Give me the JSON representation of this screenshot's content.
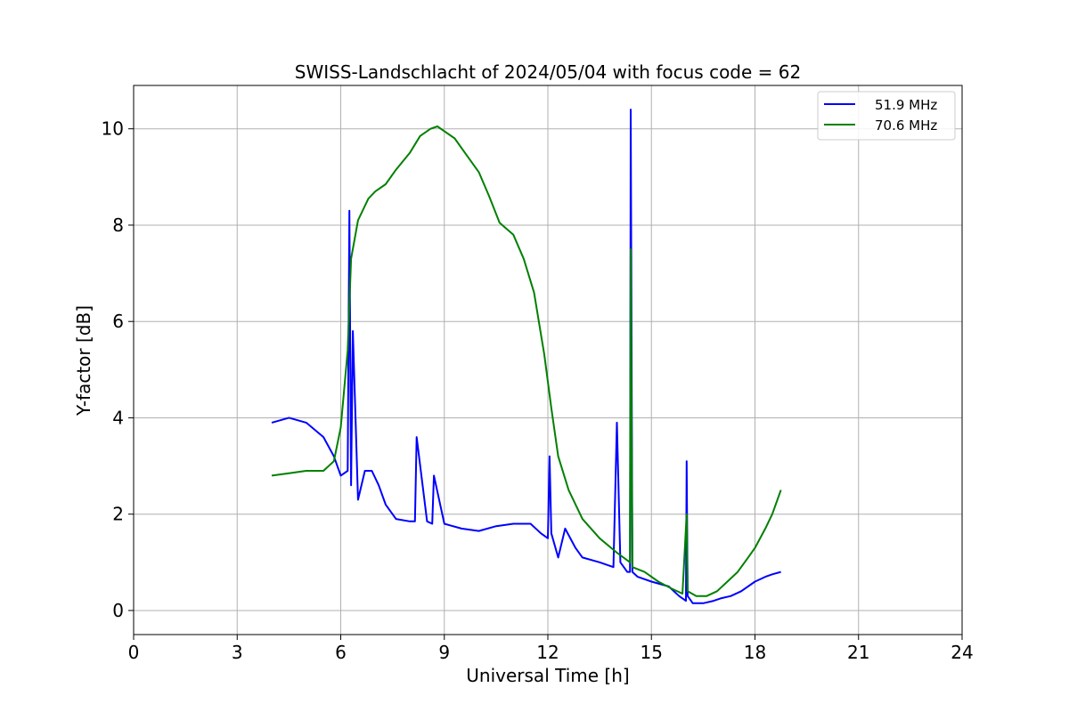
{
  "chart_data": {
    "type": "line",
    "title": "SWISS-Landschlacht of 2024/05/04 with focus code = 62",
    "xlabel": "Universal Time [h]",
    "ylabel": "Y-factor [dB]",
    "xlim": [
      0,
      24
    ],
    "ylim": [
      -0.5,
      10.9
    ],
    "xticks": [
      0,
      3,
      6,
      9,
      12,
      15,
      18,
      21,
      24
    ],
    "yticks": [
      0,
      2,
      4,
      6,
      8,
      10
    ],
    "grid": true,
    "legend_position": "top-right",
    "series": [
      {
        "name": "51.9 MHz",
        "color": "#0000ff",
        "x": [
          4.0,
          4.5,
          5.0,
          5.5,
          5.8,
          6.0,
          6.2,
          6.25,
          6.3,
          6.35,
          6.5,
          6.7,
          6.9,
          7.1,
          7.3,
          7.6,
          8.0,
          8.15,
          8.2,
          8.5,
          8.65,
          8.7,
          9.0,
          9.5,
          10.0,
          10.5,
          11.0,
          11.5,
          11.8,
          12.0,
          12.05,
          12.1,
          12.3,
          12.5,
          12.8,
          13.0,
          13.5,
          13.9,
          14.0,
          14.1,
          14.3,
          14.38,
          14.4,
          14.45,
          14.6,
          15.0,
          15.5,
          15.8,
          16.0,
          16.02,
          16.05,
          16.2,
          16.5,
          16.8,
          17.0,
          17.3,
          17.6,
          18.0,
          18.3,
          18.5,
          18.75
        ],
        "y": [
          3.9,
          4.0,
          3.9,
          3.6,
          3.2,
          2.8,
          2.9,
          8.3,
          2.6,
          5.8,
          2.3,
          2.9,
          2.9,
          2.6,
          2.2,
          1.9,
          1.85,
          1.85,
          3.6,
          1.85,
          1.8,
          2.8,
          1.8,
          1.7,
          1.65,
          1.75,
          1.8,
          1.8,
          1.6,
          1.5,
          3.2,
          1.6,
          1.1,
          1.7,
          1.3,
          1.1,
          1.0,
          0.9,
          3.9,
          1.0,
          0.8,
          0.8,
          10.4,
          0.8,
          0.7,
          0.6,
          0.5,
          0.3,
          0.2,
          3.1,
          0.3,
          0.15,
          0.15,
          0.2,
          0.25,
          0.3,
          0.4,
          0.6,
          0.7,
          0.75,
          0.8
        ]
      },
      {
        "name": "70.6 MHz",
        "color": "#008000",
        "x": [
          4.0,
          4.5,
          5.0,
          5.5,
          5.8,
          6.0,
          6.2,
          6.3,
          6.5,
          6.8,
          7.0,
          7.3,
          7.6,
          8.0,
          8.3,
          8.6,
          8.8,
          9.0,
          9.3,
          9.6,
          10.0,
          10.3,
          10.6,
          11.0,
          11.3,
          11.6,
          11.9,
          12.1,
          12.3,
          12.6,
          13.0,
          13.5,
          14.0,
          14.38,
          14.4,
          14.45,
          14.8,
          15.2,
          15.6,
          15.9,
          16.02,
          16.05,
          16.3,
          16.6,
          16.9,
          17.2,
          17.5,
          17.8,
          18.0,
          18.3,
          18.5,
          18.75
        ],
        "y": [
          2.8,
          2.85,
          2.9,
          2.9,
          3.1,
          3.8,
          5.4,
          7.3,
          8.1,
          8.55,
          8.7,
          8.85,
          9.15,
          9.5,
          9.85,
          10.0,
          10.05,
          9.95,
          9.8,
          9.5,
          9.1,
          8.6,
          8.05,
          7.8,
          7.3,
          6.6,
          5.3,
          4.2,
          3.2,
          2.5,
          1.9,
          1.5,
          1.2,
          1.0,
          7.5,
          0.9,
          0.8,
          0.6,
          0.45,
          0.35,
          2.0,
          0.4,
          0.3,
          0.3,
          0.4,
          0.6,
          0.8,
          1.1,
          1.3,
          1.7,
          2.0,
          2.5
        ]
      }
    ]
  }
}
